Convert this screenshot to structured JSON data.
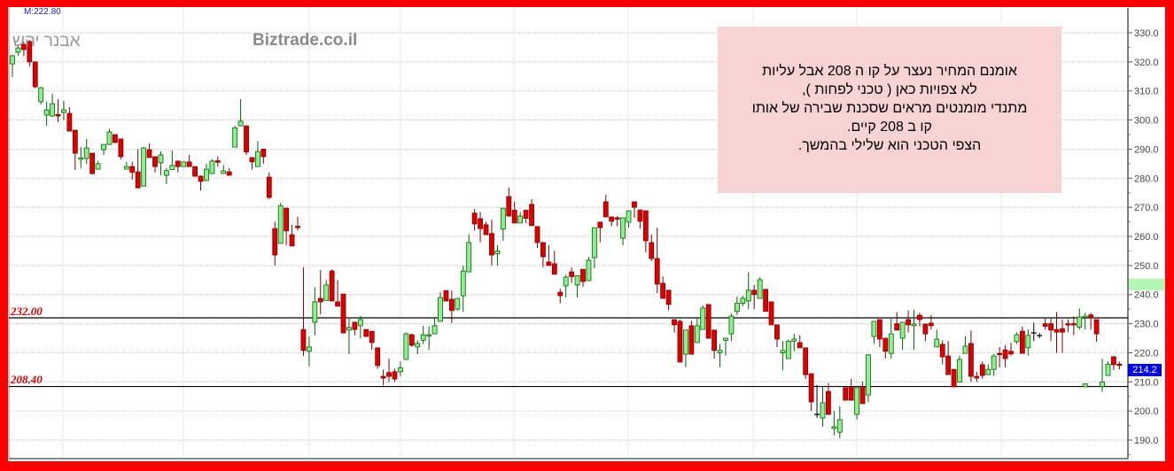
{
  "header": {
    "last_value": "M:222.80"
  },
  "watermarks": {
    "author": "אבנר יהש",
    "site": "Biztrade.co.il"
  },
  "annotation": {
    "lines": [
      "אומנם המחיר נעצר על קו ה 208 אבל עליות",
      "לא צפויות כאן ( טכני לפחות ),",
      "מתנדי מומנטים מראים שסכנת שבירה של אותו",
      "קו ב 208 קיים.",
      "הצפי הטכני הוא שלילי בהמשך."
    ],
    "background": "#f8d3d3"
  },
  "chart_data": {
    "type": "candlestick",
    "title": "",
    "xlabel": "",
    "ylabel": "",
    "ylim": [
      186,
      335
    ],
    "y_ticks": [
      "190.0",
      "200.0",
      "210.0",
      "220.0",
      "230.0",
      "240.0",
      "250.0",
      "260.0",
      "270.0",
      "280.0",
      "290.0",
      "300.0",
      "310.0",
      "320.0",
      "330.0"
    ],
    "y_axis_position": "right",
    "grid": true,
    "colors": {
      "up": "#90ee90",
      "up_edge": "#006400",
      "down": "#dd0000",
      "down_edge": "#800000",
      "flat": "#000000",
      "last_price_tag": "#0000ee",
      "highlight_band": "#b5f5b5",
      "line_labels": "#dd0000",
      "background_frame": "#ff0000"
    },
    "horizontal_lines": [
      {
        "value": 232.0,
        "label": "232.00"
      },
      {
        "value": 208.4,
        "label": "208.40"
      }
    ],
    "axis_highlight_band": [
      241.5,
      245.5
    ],
    "last_price": {
      "value": 214.2,
      "label": "214.2"
    },
    "ohlc_columns": [
      "open",
      "high",
      "low",
      "close"
    ],
    "candles": [
      [
        319.3,
        322.4,
        314.8,
        322.1
      ],
      [
        323.3,
        325.4,
        322.1,
        324.8
      ],
      [
        326,
        327,
        322,
        324.2
      ],
      [
        327,
        327.5,
        318.4,
        320
      ],
      [
        320,
        320,
        311,
        311.4
      ],
      [
        306.3,
        311.4,
        305.4,
        311.1
      ],
      [
        301.7,
        306.3,
        298,
        303.5
      ],
      [
        301.4,
        309.1,
        301,
        305.6
      ],
      [
        301.9,
        307.2,
        299.3,
        301.4
      ],
      [
        302.6,
        306.6,
        300,
        303.5
      ],
      [
        302.3,
        304.4,
        296,
        296.2
      ],
      [
        296.5,
        296.5,
        282.8,
        288.6
      ],
      [
        286.5,
        290.7,
        283.4,
        287
      ],
      [
        286.8,
        293.5,
        285,
        290.4
      ],
      [
        288.6,
        288.6,
        281.3,
        281.6
      ],
      [
        283.1,
        286,
        283,
        285
      ],
      [
        289.8,
        291.6,
        288,
        291.6
      ],
      [
        291.6,
        297,
        291.6,
        295.9
      ],
      [
        295,
        295,
        292,
        292.3
      ],
      [
        293.5,
        293.5,
        286.5,
        287.4
      ],
      [
        283.1,
        285.6,
        283,
        284
      ],
      [
        284,
        285.6,
        279.5,
        282
      ],
      [
        282.2,
        290,
        276.5,
        276.7
      ],
      [
        277.3,
        290.7,
        277.3,
        290.4
      ],
      [
        289.8,
        292,
        287,
        287.1
      ],
      [
        287.4,
        287.4,
        282,
        284
      ],
      [
        285.3,
        289.2,
        281,
        288
      ],
      [
        281,
        283.5,
        278,
        282.6
      ],
      [
        283,
        289.5,
        283,
        284.4
      ],
      [
        285.9,
        285.9,
        282,
        284
      ],
      [
        284,
        285.6,
        284,
        285.6
      ],
      [
        285.6,
        288,
        284,
        284
      ],
      [
        284,
        284,
        280.5,
        280.7
      ],
      [
        280.7,
        281,
        275.8,
        278.9
      ],
      [
        279.2,
        285,
        279,
        283.1
      ],
      [
        281.6,
        286.5,
        281.6,
        285.9
      ],
      [
        286,
        287.5,
        284,
        285.5
      ],
      [
        281.6,
        284.5,
        281.6,
        282.5
      ],
      [
        282.2,
        283.5,
        281,
        281
      ],
      [
        290.7,
        298,
        290.7,
        297.3
      ],
      [
        298,
        307.2,
        298,
        299.6
      ],
      [
        298,
        298,
        288,
        289
      ],
      [
        287.1,
        287.1,
        283,
        285.6
      ],
      [
        284,
        292.8,
        284,
        289.2
      ],
      [
        290,
        290,
        285,
        287.4
      ],
      [
        280.4,
        282,
        272.8,
        273.4
      ],
      [
        262.7,
        265,
        250,
        253.6
      ],
      [
        257.6,
        271.5,
        257.6,
        270.6
      ],
      [
        269.7,
        269.7,
        257,
        261.9
      ],
      [
        260.6,
        264,
        256.7,
        256.7
      ],
      [
        263.5,
        266.7,
        262,
        263
      ],
      [
        228,
        249.4,
        218.9,
        220.8
      ],
      [
        220.5,
        225.6,
        215.3,
        222
      ],
      [
        230.5,
        242.5,
        226,
        237.5
      ],
      [
        238.7,
        248.4,
        233.2,
        237.5
      ],
      [
        238,
        245,
        238,
        243.3
      ],
      [
        248.1,
        248.7,
        237.8,
        237.8
      ],
      [
        237.5,
        245,
        236,
        236
      ],
      [
        240.2,
        240.2,
        226.8,
        226.8
      ],
      [
        227.8,
        231.7,
        219.5,
        228.7
      ],
      [
        230.5,
        230.5,
        226,
        228
      ],
      [
        229.3,
        232.7,
        225,
        231.4
      ],
      [
        228,
        228,
        225.6,
        225.6
      ],
      [
        227.4,
        227.4,
        221,
        223.5
      ],
      [
        221.7,
        221.7,
        214.5,
        215.6
      ],
      [
        211.9,
        214.2,
        208.8,
        211.3
      ],
      [
        213.2,
        218,
        210,
        211.9
      ],
      [
        213.5,
        214.5,
        210,
        211
      ],
      [
        213.5,
        217,
        212,
        214.8
      ],
      [
        217.7,
        227,
        217.7,
        226.5
      ],
      [
        226.2,
        226.5,
        222,
        222.6
      ],
      [
        222,
        224.3,
        219.5,
        223.2
      ],
      [
        224.3,
        229.3,
        223,
        226.2
      ],
      [
        225.8,
        229,
        221,
        226.2
      ],
      [
        226.5,
        232,
        226.5,
        229.3
      ],
      [
        230.8,
        240.8,
        230.8,
        239
      ],
      [
        241.4,
        241.4,
        237.8,
        237.8
      ],
      [
        238.4,
        241.4,
        230.2,
        234.5
      ],
      [
        235,
        238.7,
        234.5,
        238.7
      ],
      [
        239.6,
        250,
        234,
        248.1
      ],
      [
        247.8,
        260.7,
        247.8,
        257.9
      ],
      [
        268,
        269.4,
        262,
        264.3
      ],
      [
        266.1,
        268.4,
        258,
        262.7
      ],
      [
        264,
        265,
        260.6,
        260.6
      ],
      [
        261,
        265.8,
        250,
        253.6
      ],
      [
        254,
        257,
        250,
        255
      ],
      [
        262.5,
        269.7,
        258.5,
        269.7
      ],
      [
        273.7,
        276.8,
        267,
        267
      ],
      [
        269,
        272,
        264.6,
        264.6
      ],
      [
        264.6,
        268.4,
        264.6,
        267
      ],
      [
        269,
        269,
        264.6,
        266.2
      ],
      [
        271,
        272.8,
        263.7,
        263.7
      ],
      [
        263.4,
        263.4,
        256,
        257.9
      ],
      [
        257.9,
        257.9,
        249.4,
        253
      ],
      [
        251.2,
        257,
        250,
        250
      ],
      [
        250.6,
        255,
        247,
        247
      ],
      [
        240.8,
        242,
        237,
        239.6
      ],
      [
        243,
        246.8,
        239,
        246
      ],
      [
        247.8,
        249.4,
        244,
        246.2
      ],
      [
        243.3,
        246.5,
        239,
        246.5
      ],
      [
        248.7,
        248.7,
        242.7,
        244.5
      ],
      [
        244.8,
        253,
        244.8,
        251.8
      ],
      [
        252.7,
        263,
        249,
        263
      ],
      [
        264.9,
        264.9,
        258,
        263
      ],
      [
        271.9,
        274.3,
        266.7,
        266.7
      ],
      [
        266.7,
        266.7,
        263.5,
        265.2
      ],
      [
        266.4,
        267,
        263.5,
        266
      ],
      [
        259.4,
        266.4,
        257,
        266.4
      ],
      [
        264.9,
        268.8,
        263,
        268.8
      ],
      [
        271.9,
        271.9,
        266.4,
        270
      ],
      [
        269.1,
        269.1,
        262.7,
        265.2
      ],
      [
        268.8,
        268.8,
        254.5,
        258.5
      ],
      [
        257.9,
        260.7,
        251.5,
        252.4
      ],
      [
        252.4,
        263,
        240.5,
        243.6
      ],
      [
        243.9,
        246.2,
        238.7,
        238.7
      ],
      [
        241.5,
        241.5,
        234.6,
        236.6
      ],
      [
        231.4,
        231.4,
        227,
        229.6
      ],
      [
        230.8,
        231.4,
        216.8,
        216.8
      ],
      [
        219.5,
        227.8,
        215,
        227.8
      ],
      [
        229.3,
        231,
        219.5,
        219.5
      ],
      [
        223.5,
        232,
        223.5,
        229.3
      ],
      [
        228,
        236.3,
        228,
        235.4
      ],
      [
        236.6,
        236.6,
        225,
        225
      ],
      [
        227.8,
        227.8,
        218,
        220.8
      ],
      [
        220,
        223,
        215,
        220.8
      ],
      [
        224.3,
        225,
        219,
        225
      ],
      [
        226.5,
        233.5,
        224,
        232.6
      ],
      [
        234.2,
        239.3,
        233,
        237
      ],
      [
        237,
        239.6,
        236,
        238.7
      ],
      [
        237.8,
        247.7,
        235,
        241.5
      ],
      [
        241.5,
        243.3,
        235,
        240
      ],
      [
        238.7,
        246,
        238.7,
        245.1
      ],
      [
        241.8,
        241.8,
        234.2,
        234.2
      ],
      [
        237.5,
        237.5,
        229.6,
        229.6
      ],
      [
        229.6,
        229.6,
        222,
        224.7
      ],
      [
        220,
        224,
        214,
        220.8
      ],
      [
        218,
        224.5,
        218,
        224
      ],
      [
        224,
        226.5,
        220.5,
        224.7
      ],
      [
        223.5,
        226,
        221.7,
        221.7
      ],
      [
        221.7,
        221.7,
        211,
        212.5
      ],
      [
        212.8,
        212.8,
        200,
        203.1
      ],
      [
        198.8,
        209,
        197.6,
        198.8
      ],
      [
        197.6,
        208.3,
        194.6,
        202.8
      ],
      [
        206.7,
        209.6,
        198.8,
        198.8
      ],
      [
        194,
        200,
        191.5,
        194.6
      ],
      [
        192.7,
        201.6,
        190.6,
        197
      ],
      [
        208,
        208,
        203.7,
        203.7
      ],
      [
        208.3,
        211,
        203.7,
        203.7
      ],
      [
        198.8,
        208,
        197,
        208
      ],
      [
        208.3,
        210,
        202.5,
        202.5
      ],
      [
        205.5,
        219.3,
        203,
        219.3
      ],
      [
        225.6,
        230.8,
        223,
        230.8
      ],
      [
        231.4,
        231.4,
        222,
        224.7
      ],
      [
        225,
        225,
        218,
        220.5
      ],
      [
        219.8,
        231.7,
        218,
        226.5
      ],
      [
        230,
        234,
        227.8,
        227.8
      ],
      [
        225,
        230.5,
        221,
        230.5
      ],
      [
        231.4,
        234.5,
        227,
        229.6
      ],
      [
        229.3,
        234.8,
        221,
        229.9
      ],
      [
        232.9,
        233.7,
        229,
        231.4
      ],
      [
        229.9,
        229.9,
        224,
        226.5
      ],
      [
        230.2,
        233,
        228,
        229.3
      ],
      [
        222,
        228,
        222,
        224.7
      ],
      [
        222.9,
        224.3,
        216,
        218.6
      ],
      [
        218.9,
        224,
        212.5,
        212.5
      ],
      [
        214.3,
        214.3,
        208.3,
        208.3
      ],
      [
        209.9,
        219,
        209.9,
        217.7
      ],
      [
        219.8,
        225.6,
        219.8,
        222.3
      ],
      [
        223.2,
        227.7,
        210,
        211.9
      ],
      [
        211.9,
        213.5,
        210,
        211.3
      ],
      [
        215.9,
        217,
        211,
        212.2
      ],
      [
        212.5,
        216,
        212.5,
        214.3
      ],
      [
        214.3,
        219.6,
        212,
        218.9
      ],
      [
        219.8,
        222,
        215,
        219.5
      ],
      [
        221,
        222.6,
        215,
        218
      ],
      [
        220.5,
        223.5,
        219,
        219.6
      ],
      [
        223.8,
        227,
        223,
        226.2
      ],
      [
        227.4,
        229,
        219.8,
        219.8
      ],
      [
        221.7,
        228,
        219,
        226
      ],
      [
        226.8,
        230.4,
        224,
        226.8
      ],
      [
        225.9,
        226.8,
        225,
        225.9
      ],
      [
        230,
        232,
        228,
        229.1
      ],
      [
        230,
        231.7,
        224,
        227.8
      ],
      [
        228,
        234,
        220,
        227.1
      ],
      [
        228.3,
        231.4,
        220,
        227.1
      ],
      [
        230,
        231.5,
        227,
        229.6
      ],
      [
        230,
        232.5,
        226,
        229.6
      ],
      [
        228.8,
        235.2,
        228,
        232.3
      ],
      [
        232.3,
        233.7,
        228,
        232.6
      ],
      [
        233,
        233.7,
        228,
        232
      ],
      [
        231.4,
        231.4,
        223.8,
        226.5
      ],
      [
        208.4,
        217.9,
        206.6,
        210
      ],
      [
        212.2,
        217,
        212.2,
        216.1
      ],
      [
        218.6,
        219,
        214,
        215.9
      ],
      [
        216.1,
        217,
        214.3,
        216
      ]
    ],
    "overlay_candles": [
      {
        "index": 188,
        "ohlc": [
          208.3,
          209.3,
          208.3,
          209.3
        ]
      }
    ]
  }
}
